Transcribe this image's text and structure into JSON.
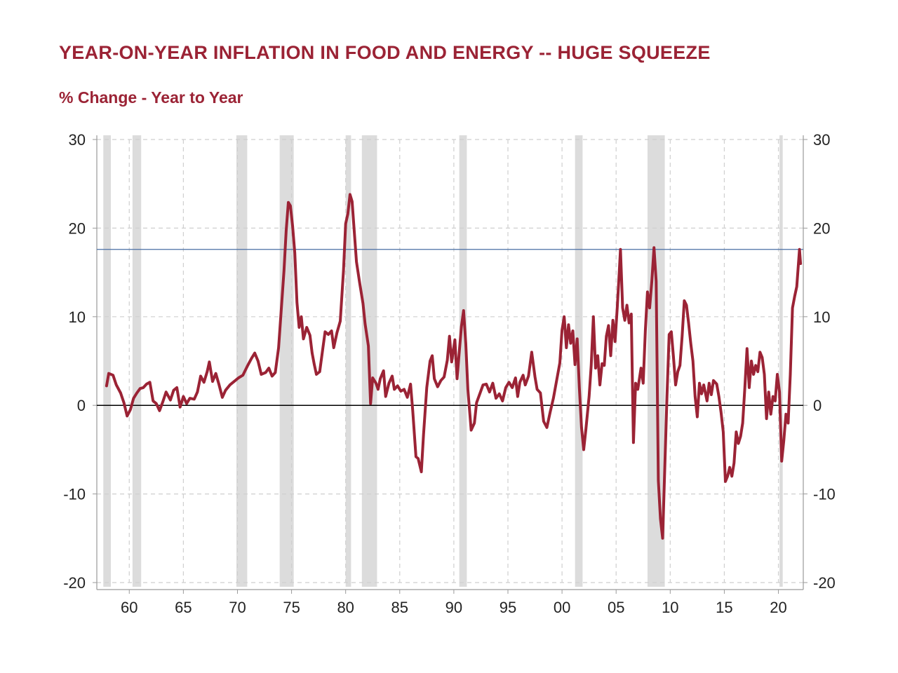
{
  "chart_data": {
    "type": "line",
    "title": "YEAR-ON-YEAR INFLATION IN FOOD AND ENERGY -- HUGE SQUEEZE",
    "subtitle": "% Change - Year to Year",
    "xlabel": "",
    "ylabel": "",
    "xlim": [
      1957,
      2022.3
    ],
    "ylim": [
      -20,
      30
    ],
    "x_ticks": [
      1960,
      1965,
      1970,
      1975,
      1980,
      1985,
      1990,
      1995,
      2000,
      2005,
      2010,
      2015,
      2020
    ],
    "x_tick_labels": [
      "60",
      "65",
      "70",
      "75",
      "80",
      "85",
      "90",
      "95",
      "00",
      "05",
      "10",
      "15",
      "20"
    ],
    "y_ticks": [
      -20,
      -10,
      0,
      10,
      20,
      30
    ],
    "y_tick_labels": [
      "-20",
      "-10",
      "0",
      "10",
      "20",
      "30"
    ],
    "grid": true,
    "reference_line": {
      "y": 17.6,
      "color": "#4a6fa5"
    },
    "zero_line": {
      "y": 0,
      "color": "#000000"
    },
    "recessions": [
      [
        1957.6,
        1958.3
      ],
      [
        1960.3,
        1961.1
      ],
      [
        1969.9,
        1970.9
      ],
      [
        1973.9,
        1975.2
      ],
      [
        1980.0,
        1980.5
      ],
      [
        1981.5,
        1982.9
      ],
      [
        1990.5,
        1991.2
      ],
      [
        2001.2,
        2001.9
      ],
      [
        2007.9,
        2009.5
      ],
      [
        2020.1,
        2020.4
      ]
    ],
    "series": [
      {
        "color": "#9b2335",
        "points": [
          [
            1957.9,
            2.2
          ],
          [
            1958.1,
            3.6
          ],
          [
            1958.5,
            3.4
          ],
          [
            1958.8,
            2.3
          ],
          [
            1959.2,
            1.4
          ],
          [
            1959.5,
            0.3
          ],
          [
            1959.8,
            -1.2
          ],
          [
            1960.1,
            -0.5
          ],
          [
            1960.4,
            0.8
          ],
          [
            1960.7,
            1.4
          ],
          [
            1961.0,
            1.9
          ],
          [
            1961.3,
            2.0
          ],
          [
            1961.6,
            2.4
          ],
          [
            1961.9,
            2.6
          ],
          [
            1962.2,
            0.5
          ],
          [
            1962.5,
            0.2
          ],
          [
            1962.8,
            -0.6
          ],
          [
            1963.1,
            0.4
          ],
          [
            1963.4,
            1.5
          ],
          [
            1963.8,
            0.6
          ],
          [
            1964.1,
            1.7
          ],
          [
            1964.4,
            2.0
          ],
          [
            1964.7,
            -0.2
          ],
          [
            1965.0,
            1.0
          ],
          [
            1965.3,
            0.2
          ],
          [
            1965.6,
            0.8
          ],
          [
            1966.0,
            0.7
          ],
          [
            1966.3,
            1.5
          ],
          [
            1966.6,
            3.3
          ],
          [
            1966.9,
            2.6
          ],
          [
            1967.2,
            3.8
          ],
          [
            1967.4,
            4.9
          ],
          [
            1967.7,
            2.7
          ],
          [
            1968.0,
            3.6
          ],
          [
            1968.3,
            2.3
          ],
          [
            1968.6,
            0.9
          ],
          [
            1968.9,
            1.7
          ],
          [
            1969.3,
            2.3
          ],
          [
            1969.7,
            2.7
          ],
          [
            1970.1,
            3.1
          ],
          [
            1970.5,
            3.4
          ],
          [
            1970.9,
            4.4
          ],
          [
            1971.3,
            5.3
          ],
          [
            1971.6,
            5.9
          ],
          [
            1971.9,
            5.0
          ],
          [
            1972.2,
            3.5
          ],
          [
            1972.6,
            3.7
          ],
          [
            1972.9,
            4.2
          ],
          [
            1973.2,
            3.3
          ],
          [
            1973.5,
            3.7
          ],
          [
            1973.8,
            6.5
          ],
          [
            1974.0,
            10.0
          ],
          [
            1974.3,
            15.2
          ],
          [
            1974.5,
            19.7
          ],
          [
            1974.7,
            22.9
          ],
          [
            1974.9,
            22.5
          ],
          [
            1975.1,
            20.2
          ],
          [
            1975.3,
            17.2
          ],
          [
            1975.5,
            11.6
          ],
          [
            1975.7,
            8.8
          ],
          [
            1975.9,
            10.0
          ],
          [
            1976.1,
            7.5
          ],
          [
            1976.4,
            8.8
          ],
          [
            1976.7,
            7.9
          ],
          [
            1976.9,
            5.9
          ],
          [
            1977.1,
            4.6
          ],
          [
            1977.3,
            3.5
          ],
          [
            1977.6,
            3.8
          ],
          [
            1977.9,
            6.5
          ],
          [
            1978.1,
            8.3
          ],
          [
            1978.4,
            8.0
          ],
          [
            1978.7,
            8.4
          ],
          [
            1978.9,
            6.5
          ],
          [
            1979.2,
            8.2
          ],
          [
            1979.5,
            9.5
          ],
          [
            1979.8,
            15.2
          ],
          [
            1980.0,
            20.5
          ],
          [
            1980.2,
            21.6
          ],
          [
            1980.4,
            23.8
          ],
          [
            1980.6,
            23.0
          ],
          [
            1980.8,
            19.6
          ],
          [
            1981.0,
            16.2
          ],
          [
            1981.3,
            13.8
          ],
          [
            1981.6,
            11.5
          ],
          [
            1981.8,
            9.2
          ],
          [
            1982.1,
            6.7
          ],
          [
            1982.3,
            0.2
          ],
          [
            1982.5,
            3.1
          ],
          [
            1982.8,
            2.5
          ],
          [
            1983.0,
            1.8
          ],
          [
            1983.2,
            3.0
          ],
          [
            1983.5,
            3.9
          ],
          [
            1983.7,
            1.0
          ],
          [
            1984.0,
            2.5
          ],
          [
            1984.3,
            3.3
          ],
          [
            1984.5,
            1.8
          ],
          [
            1984.8,
            2.2
          ],
          [
            1985.1,
            1.6
          ],
          [
            1985.4,
            1.8
          ],
          [
            1985.7,
            0.9
          ],
          [
            1986.0,
            2.4
          ],
          [
            1986.2,
            -0.6
          ],
          [
            1986.5,
            -5.8
          ],
          [
            1986.7,
            -6.0
          ],
          [
            1987.0,
            -7.5
          ],
          [
            1987.2,
            -3.3
          ],
          [
            1987.5,
            2.0
          ],
          [
            1987.8,
            5.0
          ],
          [
            1988.0,
            5.6
          ],
          [
            1988.2,
            3.0
          ],
          [
            1988.5,
            2.1
          ],
          [
            1988.8,
            2.8
          ],
          [
            1989.1,
            3.2
          ],
          [
            1989.4,
            5.1
          ],
          [
            1989.6,
            7.8
          ],
          [
            1989.8,
            4.9
          ],
          [
            1990.1,
            7.4
          ],
          [
            1990.3,
            3.0
          ],
          [
            1990.5,
            6.0
          ],
          [
            1990.7,
            8.9
          ],
          [
            1990.9,
            10.7
          ],
          [
            1991.1,
            7.0
          ],
          [
            1991.3,
            1.8
          ],
          [
            1991.6,
            -2.8
          ],
          [
            1991.9,
            -2.0
          ],
          [
            1992.1,
            0.3
          ],
          [
            1992.4,
            1.3
          ],
          [
            1992.7,
            2.3
          ],
          [
            1993.0,
            2.4
          ],
          [
            1993.3,
            1.5
          ],
          [
            1993.6,
            2.5
          ],
          [
            1993.9,
            0.8
          ],
          [
            1994.2,
            1.3
          ],
          [
            1994.5,
            0.5
          ],
          [
            1994.8,
            2.0
          ],
          [
            1995.1,
            2.6
          ],
          [
            1995.4,
            2.0
          ],
          [
            1995.7,
            3.1
          ],
          [
            1995.9,
            1.0
          ],
          [
            1996.1,
            2.6
          ],
          [
            1996.4,
            3.4
          ],
          [
            1996.6,
            2.3
          ],
          [
            1996.9,
            3.3
          ],
          [
            1997.2,
            6.0
          ],
          [
            1997.5,
            3.2
          ],
          [
            1997.7,
            1.8
          ],
          [
            1998.0,
            1.4
          ],
          [
            1998.3,
            -1.8
          ],
          [
            1998.6,
            -2.5
          ],
          [
            1998.9,
            -0.8
          ],
          [
            1999.2,
            0.8
          ],
          [
            1999.5,
            2.8
          ],
          [
            1999.8,
            4.8
          ],
          [
            2000.0,
            8.5
          ],
          [
            2000.2,
            10.0
          ],
          [
            2000.4,
            6.5
          ],
          [
            2000.6,
            9.1
          ],
          [
            2000.8,
            7.0
          ],
          [
            2001.0,
            8.4
          ],
          [
            2001.2,
            4.6
          ],
          [
            2001.4,
            7.5
          ],
          [
            2001.6,
            2.0
          ],
          [
            2001.8,
            -2.5
          ],
          [
            2002.0,
            -5.0
          ],
          [
            2002.2,
            -2.8
          ],
          [
            2002.5,
            1.0
          ],
          [
            2002.7,
            4.5
          ],
          [
            2002.9,
            10.0
          ],
          [
            2003.1,
            4.2
          ],
          [
            2003.3,
            5.6
          ],
          [
            2003.5,
            2.3
          ],
          [
            2003.7,
            4.7
          ],
          [
            2003.9,
            4.5
          ],
          [
            2004.1,
            7.8
          ],
          [
            2004.3,
            9.0
          ],
          [
            2004.5,
            5.6
          ],
          [
            2004.7,
            9.6
          ],
          [
            2004.9,
            7.2
          ],
          [
            2005.1,
            11.0
          ],
          [
            2005.3,
            15.2
          ],
          [
            2005.4,
            17.6
          ],
          [
            2005.6,
            11.0
          ],
          [
            2005.8,
            9.6
          ],
          [
            2006.0,
            11.3
          ],
          [
            2006.2,
            9.3
          ],
          [
            2006.4,
            10.3
          ],
          [
            2006.6,
            -4.2
          ],
          [
            2006.8,
            2.5
          ],
          [
            2007.0,
            1.8
          ],
          [
            2007.3,
            4.2
          ],
          [
            2007.5,
            2.5
          ],
          [
            2007.7,
            8.5
          ],
          [
            2007.9,
            12.8
          ],
          [
            2008.1,
            11.0
          ],
          [
            2008.3,
            14.0
          ],
          [
            2008.5,
            17.8
          ],
          [
            2008.7,
            14.0
          ],
          [
            2008.9,
            -8.5
          ],
          [
            2009.1,
            -12.8
          ],
          [
            2009.3,
            -15.0
          ],
          [
            2009.5,
            -7.0
          ],
          [
            2009.7,
            1.0
          ],
          [
            2009.9,
            8.0
          ],
          [
            2010.1,
            8.3
          ],
          [
            2010.3,
            5.5
          ],
          [
            2010.5,
            2.3
          ],
          [
            2010.7,
            3.8
          ],
          [
            2010.9,
            4.5
          ],
          [
            2011.1,
            7.8
          ],
          [
            2011.3,
            11.8
          ],
          [
            2011.5,
            11.3
          ],
          [
            2011.7,
            9.3
          ],
          [
            2011.9,
            7.0
          ],
          [
            2012.1,
            5.0
          ],
          [
            2012.3,
            1.0
          ],
          [
            2012.5,
            -1.3
          ],
          [
            2012.7,
            2.5
          ],
          [
            2012.9,
            1.3
          ],
          [
            2013.1,
            2.3
          ],
          [
            2013.4,
            0.5
          ],
          [
            2013.6,
            2.5
          ],
          [
            2013.8,
            1.2
          ],
          [
            2014.0,
            2.8
          ],
          [
            2014.3,
            2.4
          ],
          [
            2014.5,
            1.0
          ],
          [
            2014.7,
            -0.8
          ],
          [
            2014.9,
            -3.0
          ],
          [
            2015.1,
            -8.6
          ],
          [
            2015.3,
            -8.0
          ],
          [
            2015.5,
            -7.0
          ],
          [
            2015.7,
            -8.0
          ],
          [
            2015.9,
            -6.5
          ],
          [
            2016.1,
            -3.0
          ],
          [
            2016.3,
            -4.3
          ],
          [
            2016.5,
            -3.5
          ],
          [
            2016.7,
            -2.0
          ],
          [
            2016.9,
            2.0
          ],
          [
            2017.1,
            6.4
          ],
          [
            2017.3,
            2.0
          ],
          [
            2017.5,
            5.0
          ],
          [
            2017.7,
            3.5
          ],
          [
            2017.9,
            4.5
          ],
          [
            2018.1,
            3.8
          ],
          [
            2018.3,
            6.0
          ],
          [
            2018.5,
            5.4
          ],
          [
            2018.7,
            3.5
          ],
          [
            2018.9,
            -1.5
          ],
          [
            2019.1,
            1.5
          ],
          [
            2019.3,
            -1.0
          ],
          [
            2019.5,
            1.0
          ],
          [
            2019.7,
            0.5
          ],
          [
            2019.9,
            3.5
          ],
          [
            2020.1,
            1.5
          ],
          [
            2020.3,
            -6.3
          ],
          [
            2020.5,
            -4.0
          ],
          [
            2020.7,
            -1.0
          ],
          [
            2020.9,
            -2.0
          ],
          [
            2021.1,
            3.5
          ],
          [
            2021.3,
            11.0
          ],
          [
            2021.5,
            12.3
          ],
          [
            2021.7,
            13.4
          ],
          [
            2021.85,
            16.0
          ],
          [
            2021.95,
            17.6
          ],
          [
            2022.05,
            16.0
          ]
        ]
      }
    ]
  }
}
